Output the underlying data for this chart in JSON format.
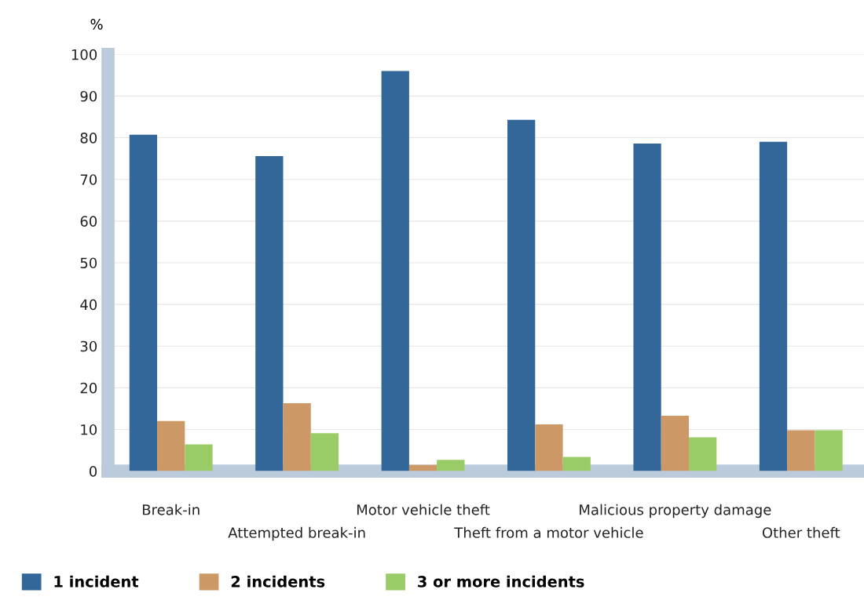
{
  "chart_data": {
    "type": "bar",
    "ylabel": "%",
    "categories": [
      "Break-in",
      "Attempted break-in",
      "Motor vehicle theft",
      "Theft from a motor vehicle",
      "Malicious property damage",
      "Other theft"
    ],
    "series": [
      {
        "name": "1 incident",
        "color": "#336699",
        "values": [
          80.7,
          75.6,
          96,
          84.3,
          78.6,
          79
        ]
      },
      {
        "name": "2 incidents",
        "color": "#cc9966",
        "values": [
          12,
          16.3,
          1.5,
          11.2,
          13.3,
          9.8
        ]
      },
      {
        "name": "3 or more incidents",
        "color": "#99cc66",
        "values": [
          6.4,
          9.1,
          2.7,
          3.4,
          8.1,
          9.8
        ]
      }
    ],
    "ylim": [
      0,
      100
    ],
    "yticks": [
      0,
      10,
      20,
      30,
      40,
      50,
      60,
      70,
      80,
      90,
      100
    ],
    "grid": "y",
    "legend": "bottom"
  }
}
